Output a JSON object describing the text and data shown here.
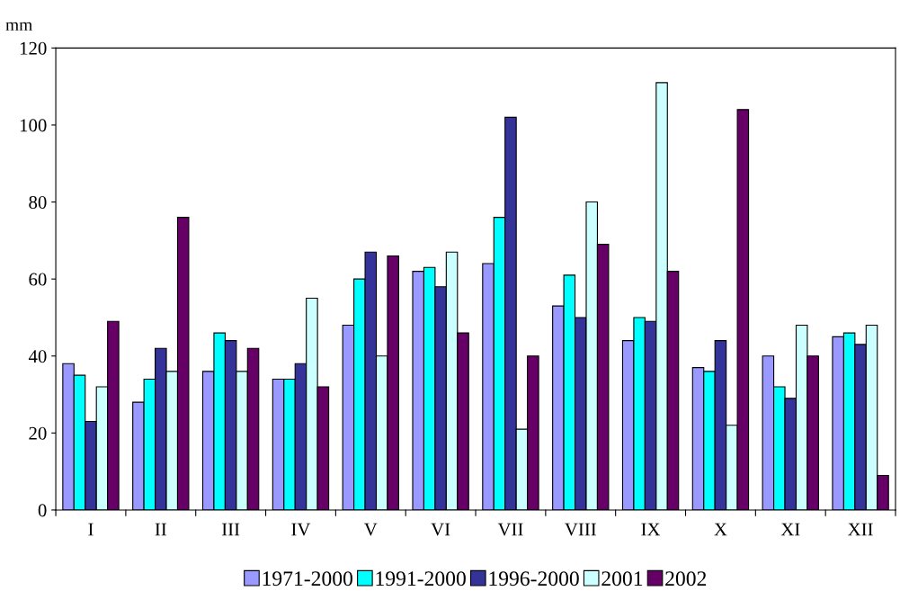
{
  "chart_data": {
    "type": "bar",
    "ylabel": "mm",
    "categories": [
      "I",
      "II",
      "III",
      "IV",
      "V",
      "VI",
      "VII",
      "VIII",
      "IX",
      "X",
      "XI",
      "XII"
    ],
    "series": [
      {
        "name": "1971-2000",
        "color": "#9999ff",
        "values": [
          38,
          28,
          36,
          34,
          48,
          62,
          64,
          53,
          44,
          37,
          40,
          45
        ]
      },
      {
        "name": "1991-2000",
        "color": "#00ffff",
        "values": [
          35,
          34,
          46,
          34,
          60,
          63,
          76,
          61,
          50,
          36,
          32,
          46
        ]
      },
      {
        "name": "1996-2000",
        "color": "#333399",
        "values": [
          23,
          42,
          44,
          38,
          67,
          58,
          102,
          50,
          49,
          44,
          29,
          43
        ]
      },
      {
        "name": "2001",
        "color": "#ccffff",
        "values": [
          32,
          36,
          36,
          55,
          40,
          67,
          21,
          80,
          111,
          22,
          48,
          48
        ]
      },
      {
        "name": "2002",
        "color": "#660066",
        "values": [
          49,
          76,
          42,
          32,
          66,
          46,
          40,
          69,
          62,
          104,
          40,
          9
        ]
      }
    ],
    "ylim": [
      0,
      120
    ],
    "yticks": [
      0,
      20,
      40,
      60,
      80,
      100,
      120
    ],
    "grid": false,
    "legend": "bottom"
  }
}
